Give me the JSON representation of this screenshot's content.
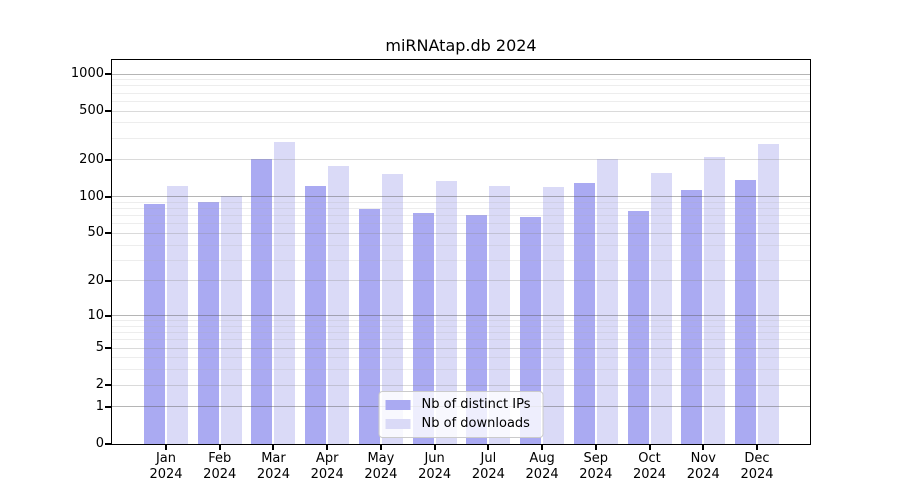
{
  "chart_data": {
    "type": "bar",
    "title": "miRNAtap.db 2024",
    "year": "2024",
    "categories": [
      "Jan",
      "Feb",
      "Mar",
      "Apr",
      "May",
      "Jun",
      "Jul",
      "Aug",
      "Sep",
      "Oct",
      "Nov",
      "Dec"
    ],
    "series": [
      {
        "name": "Nb of distinct IPs",
        "color": "#aaaaf2",
        "values": [
          87,
          90,
          203,
          123,
          79,
          73,
          71,
          68,
          130,
          76,
          113,
          137
        ]
      },
      {
        "name": "Nb of downloads",
        "color": "#dadaf7",
        "values": [
          122,
          101,
          278,
          180,
          155,
          134,
          123,
          121,
          202,
          156,
          212,
          268
        ]
      }
    ],
    "y_axis": {
      "scale": "log10(value+1)",
      "ticks": [
        0,
        1,
        2,
        5,
        10,
        20,
        50,
        100,
        200,
        500,
        1000
      ],
      "range_top_value": 1000
    },
    "minor_gridlines": [
      3,
      4,
      6,
      7,
      8,
      9,
      30,
      40,
      60,
      70,
      80,
      90,
      300,
      400,
      600,
      700,
      800,
      900
    ],
    "grid": true,
    "legend_position": "bottom-center",
    "colors": {
      "background": "#ffffff",
      "spine": "#000000",
      "major_grid": "#b4b4b4",
      "mid_grid": "#d3d3d3",
      "minor_grid": "#e9e9e9",
      "legend_border": "#cbcbcb"
    }
  }
}
